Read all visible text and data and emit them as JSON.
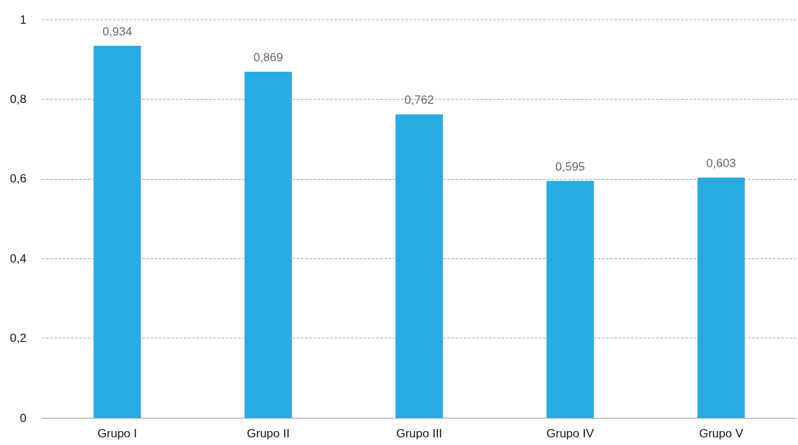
{
  "chart_data": {
    "type": "bar",
    "categories": [
      "Grupo I",
      "Grupo II",
      "Grupo III",
      "Grupo IV",
      "Grupo V"
    ],
    "values": [
      0.934,
      0.869,
      0.762,
      0.595,
      0.603
    ],
    "value_labels": [
      "0,934",
      "0,869",
      "0,762",
      "0,595",
      "0,603"
    ],
    "color": "#29abe2",
    "ylim": [
      0,
      1
    ],
    "yticks": [
      0,
      {
        "value": 0.2,
        "label": "0,2"
      },
      {
        "value": 0.4,
        "label": "0,4"
      },
      {
        "value": 0.6,
        "label": "0,6"
      },
      {
        "value": 0.8,
        "label": "0,8"
      },
      1
    ],
    "grid": "y"
  }
}
